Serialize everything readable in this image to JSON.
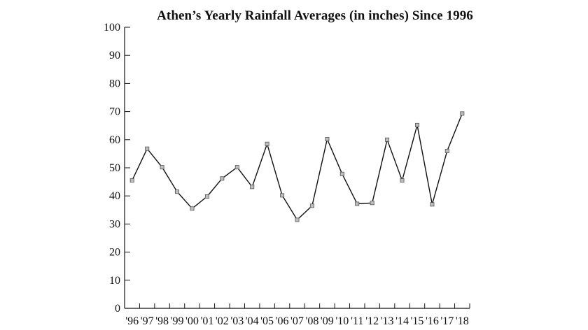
{
  "chart_data": {
    "type": "line",
    "title": "Athen’s Yearly Rainfall Averages (in inches) Since 1996",
    "xlabel": "",
    "ylabel": "",
    "categories": [
      "'96",
      "'97",
      "'98",
      "'99",
      "'00",
      "'01",
      "'02",
      "'03",
      "'04",
      "'05",
      "'06",
      "'07",
      "'08",
      "'09",
      "'10",
      "'11",
      "'12",
      "'13",
      "'14",
      "'15",
      "'16",
      "'17",
      "'18"
    ],
    "series": [
      {
        "values": [
          45.5,
          56.8,
          50.2,
          41.5,
          35.5,
          39.8,
          46.2,
          50.2,
          43.2,
          58.5,
          40.2,
          31.5,
          36.5,
          60.2,
          47.8,
          37.2,
          37.5,
          60.0,
          45.5,
          65.2,
          37.0,
          56.0,
          69.3
        ]
      }
    ],
    "ylim": [
      0,
      100
    ],
    "yticks": [
      0,
      10,
      20,
      30,
      40,
      50,
      60,
      70,
      80,
      90,
      100
    ],
    "grid": false,
    "legend": "none",
    "colors": {
      "line": "#111111",
      "marker_fill": "#bdbdbd",
      "marker_stroke": "#555555",
      "axis": "#111111"
    }
  }
}
